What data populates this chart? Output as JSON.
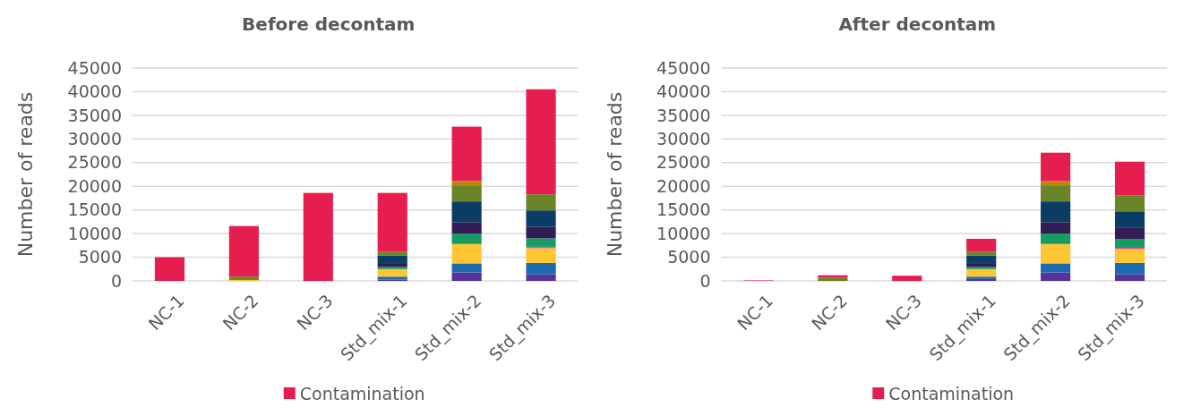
{
  "chart_data": [
    {
      "type": "bar",
      "title": "Before decontam",
      "ylabel": "Number of reads",
      "stacked": true,
      "categories": [
        "NC-1",
        "NC-2",
        "NC-3",
        "Std_mix-1",
        "Std_mix-2",
        "Std_mix-3"
      ],
      "ylim": [
        0,
        45000
      ],
      "yticks": [
        0,
        5000,
        10000,
        15000,
        20000,
        25000,
        30000,
        35000,
        40000,
        45000
      ],
      "grid": "y",
      "legend": "bottom",
      "series": [
        {
          "color": "#553399",
          "values": [
            0,
            0,
            0,
            300,
            1800,
            1400
          ]
        },
        {
          "color": "#1a6ab0",
          "values": [
            0,
            0,
            0,
            600,
            1900,
            2400
          ]
        },
        {
          "color": "#ffc633",
          "values": [
            0,
            200,
            0,
            1600,
            4100,
            3100
          ]
        },
        {
          "color": "#e8539b",
          "values": [
            0,
            0,
            0,
            0,
            0,
            300
          ]
        },
        {
          "color": "#169b62",
          "values": [
            0,
            0,
            0,
            500,
            2200,
            1800
          ]
        },
        {
          "color": "#311d53",
          "values": [
            0,
            0,
            0,
            600,
            2400,
            2400
          ]
        },
        {
          "color": "#0b3c66",
          "values": [
            0,
            0,
            0,
            1800,
            4400,
            3500
          ]
        },
        {
          "color": "#6a8428",
          "values": [
            0,
            700,
            0,
            800,
            3400,
            3400
          ]
        },
        {
          "color": "#b8860b",
          "values": [
            0,
            0,
            0,
            0,
            900,
            0
          ]
        },
        {
          "name": "Contamination",
          "color": "#e61e50",
          "values": [
            5000,
            10700,
            18600,
            12400,
            11500,
            22200
          ]
        }
      ]
    },
    {
      "type": "bar",
      "title": "After decontam",
      "ylabel": "Number of reads",
      "stacked": true,
      "categories": [
        "NC-1",
        "NC-2",
        "NC-3",
        "Std_mix-1",
        "Std_mix-2",
        "Std_mix-3"
      ],
      "ylim": [
        0,
        45000
      ],
      "yticks": [
        0,
        5000,
        10000,
        15000,
        20000,
        25000,
        30000,
        35000,
        40000,
        45000
      ],
      "grid": "y",
      "legend": "bottom",
      "series": [
        {
          "color": "#553399",
          "values": [
            0,
            0,
            0,
            400,
            1800,
            1400
          ]
        },
        {
          "color": "#1a6ab0",
          "values": [
            0,
            0,
            0,
            500,
            1900,
            2400
          ]
        },
        {
          "color": "#ffc633",
          "values": [
            0,
            0,
            0,
            1600,
            4100,
            2900
          ]
        },
        {
          "color": "#e8539b",
          "values": [
            0,
            0,
            0,
            0,
            0,
            300
          ]
        },
        {
          "color": "#169b62",
          "values": [
            0,
            0,
            0,
            500,
            2200,
            1800
          ]
        },
        {
          "color": "#311d53",
          "values": [
            0,
            0,
            0,
            600,
            2400,
            2500
          ]
        },
        {
          "color": "#0b3c66",
          "values": [
            0,
            0,
            0,
            1800,
            4400,
            3400
          ]
        },
        {
          "color": "#6a8428",
          "values": [
            0,
            700,
            0,
            800,
            3400,
            3400
          ]
        },
        {
          "color": "#b8860b",
          "values": [
            0,
            0,
            0,
            0,
            900,
            0
          ]
        },
        {
          "name": "Contamination",
          "color": "#e61e50",
          "values": [
            100,
            500,
            1100,
            2700,
            6000,
            7100
          ]
        }
      ]
    }
  ]
}
